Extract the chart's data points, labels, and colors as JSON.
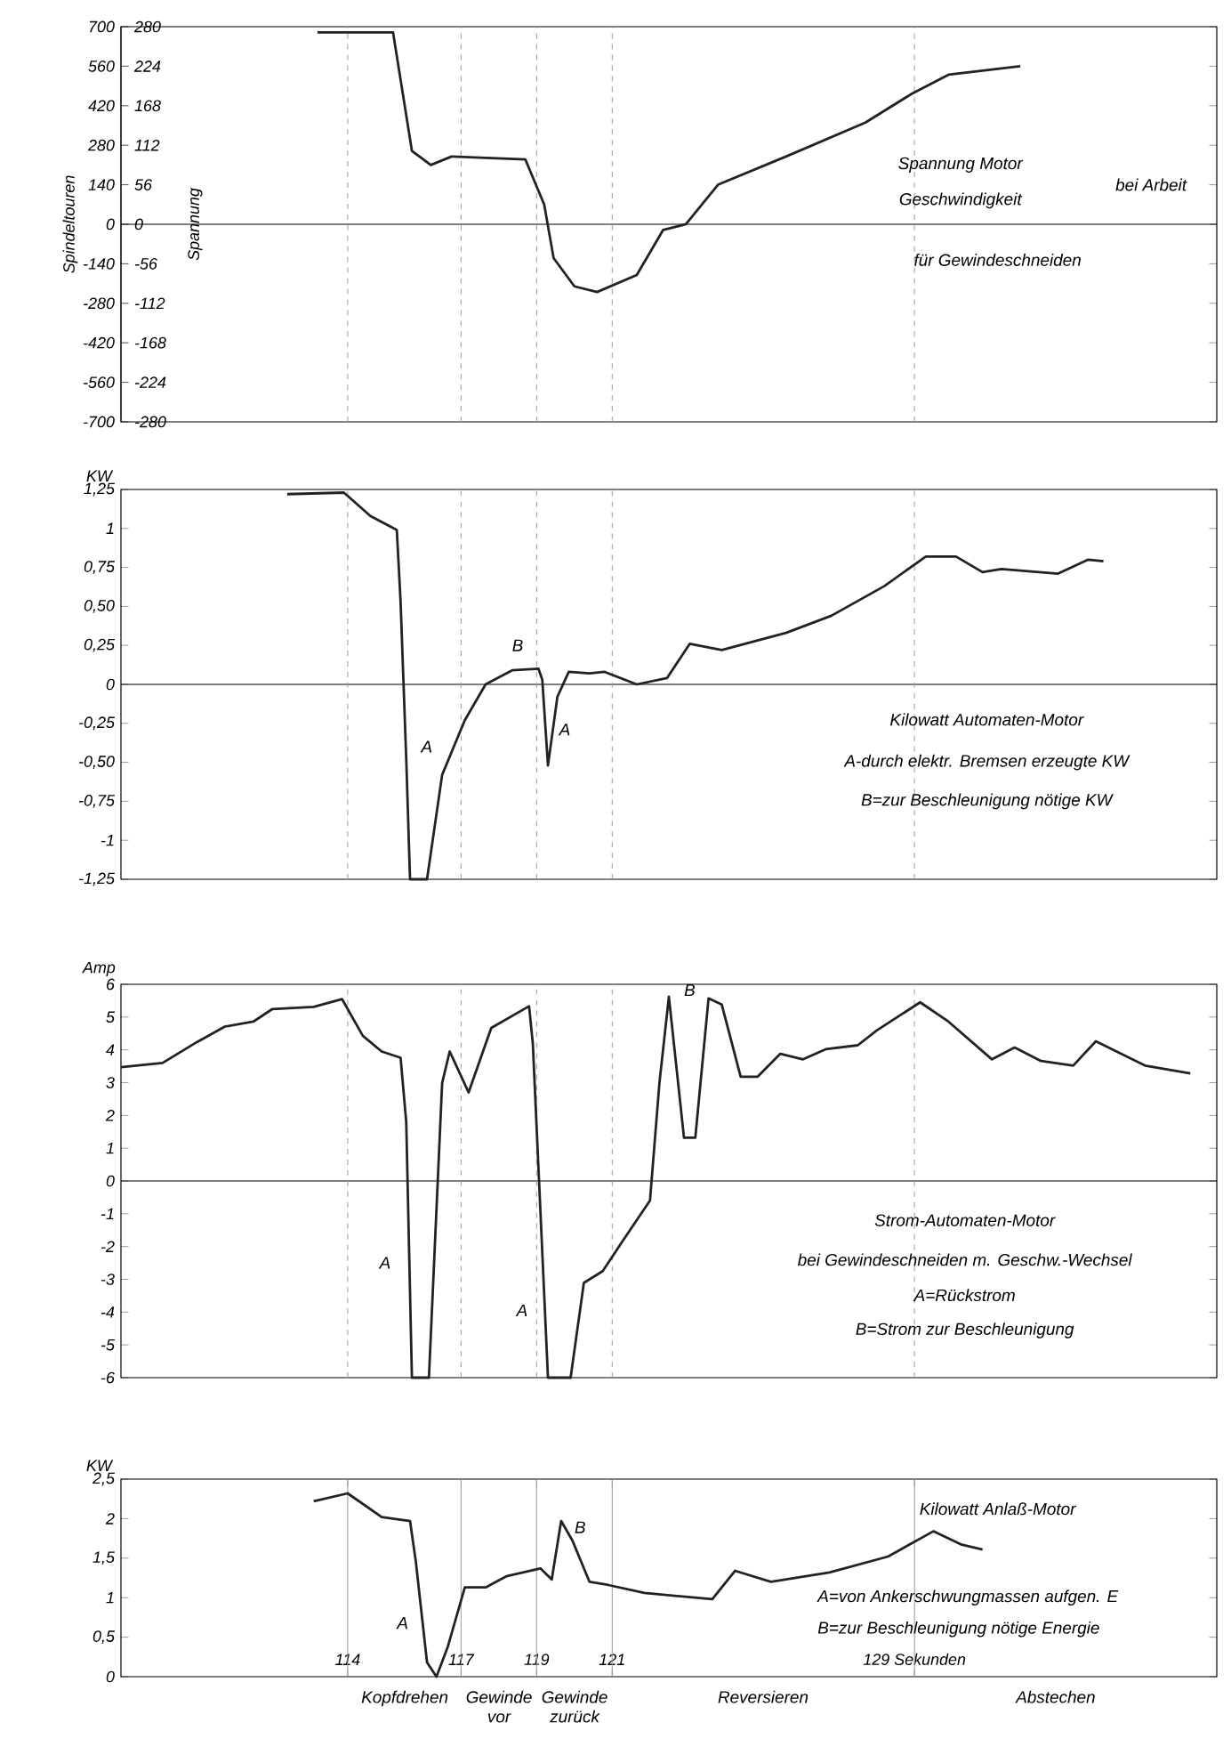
{
  "chart_data": [
    {
      "type": "line",
      "ylabel": "Spindeltouren",
      "y2label": "Spannung",
      "xlim": [
        108,
        137
      ],
      "ylim": [
        -700,
        700
      ],
      "yticks": [
        700,
        560,
        420,
        280,
        140,
        0,
        -140,
        -280,
        -420,
        -560,
        -700
      ],
      "y2lim": [
        -280,
        280
      ],
      "y2ticks": [
        280,
        224,
        168,
        112,
        56,
        0,
        -56,
        -112,
        -168,
        -224,
        -280
      ],
      "tick_labels": "y",
      "series": [
        {
          "color": "#222222",
          "x": [
            113.2,
            115.2,
            115.7,
            116.2,
            116.75,
            118.7,
            119.2,
            119.45,
            120.0,
            120.6,
            121.65,
            122.35,
            122.95,
            123.8,
            125.6,
            127.7,
            128.9,
            129.9,
            131.8
          ],
          "values": [
            680,
            680,
            260,
            210,
            240,
            230,
            70,
            -120,
            -220,
            -240,
            -180,
            -20,
            0,
            140,
            240,
            360,
            460,
            530,
            560
          ]
        }
      ],
      "ref_lines": [
        {
          "axis": "y",
          "value": 0,
          "color": "#000000"
        },
        {
          "axis": "x",
          "value": 114,
          "color": "#999999",
          "line_style": "dashed"
        },
        {
          "axis": "x",
          "value": 117,
          "color": "#999999",
          "line_style": "dashed"
        },
        {
          "axis": "x",
          "value": 119,
          "color": "#999999",
          "line_style": "dashed"
        },
        {
          "axis": "x",
          "value": 121,
          "color": "#999999",
          "line_style": "dashed"
        },
        {
          "axis": "x",
          "value": 129,
          "color": "#999999",
          "line_style": "dashed"
        }
      ],
      "annotations": [
        "Spannung Motor",
        "Geschwindigkeit",
        "bei Arbeit",
        "für Gewindeschneiden"
      ]
    },
    {
      "type": "line",
      "ylabel": "KW",
      "xlim": [
        108,
        137
      ],
      "ylim": [
        -1.25,
        1.25
      ],
      "yticks": [
        {
          "value": 1.25,
          "label": "1,25"
        },
        1,
        {
          "value": 0.75,
          "label": "0,75"
        },
        {
          "value": 0.5,
          "label": "0,50"
        },
        {
          "value": 0.25,
          "label": "0,25"
        },
        0,
        {
          "value": -0.25,
          "label": "-0,25"
        },
        {
          "value": -0.5,
          "label": "-0,50"
        },
        {
          "value": -0.75,
          "label": "-0,75"
        },
        -1,
        {
          "value": -1.25,
          "label": "-1,25"
        }
      ],
      "tick_labels": "y",
      "series": [
        {
          "color": "#222222",
          "x": [
            112.4,
            113.9,
            114.6,
            115.3,
            115.4,
            115.55,
            115.65,
            116.1,
            116.5,
            117.1,
            117.65,
            118.35,
            119.05,
            119.15,
            119.3,
            119.55,
            119.85,
            120.4,
            120.8,
            121.65,
            122.45,
            123.05,
            123.9,
            125.6,
            126.8,
            128.2,
            129.3,
            130.1,
            130.8,
            131.3,
            132.8,
            133.6,
            134.0
          ],
          "values": [
            1.22,
            1.23,
            1.08,
            0.99,
            0.53,
            -0.48,
            -1.25,
            -1.25,
            -0.58,
            -0.23,
            0,
            0.09,
            0.1,
            0.03,
            -0.52,
            -0.08,
            0.08,
            0.07,
            0.08,
            0,
            0.04,
            0.26,
            0.22,
            0.33,
            0.44,
            0.63,
            0.82,
            0.82,
            0.72,
            0.74,
            0.71,
            0.8,
            0.79
          ]
        }
      ],
      "ref_lines": [
        {
          "axis": "y",
          "value": 0,
          "color": "#000000"
        },
        {
          "axis": "x",
          "value": 114,
          "color": "#999999",
          "line_style": "dashed"
        },
        {
          "axis": "x",
          "value": 117,
          "color": "#999999",
          "line_style": "dashed"
        },
        {
          "axis": "x",
          "value": 119,
          "color": "#999999",
          "line_style": "dashed"
        },
        {
          "axis": "x",
          "value": 121,
          "color": "#999999",
          "line_style": "dashed"
        },
        {
          "axis": "x",
          "value": 129,
          "color": "#999999",
          "line_style": "dashed"
        }
      ],
      "annotations": [
        "Kilowatt Automaten-Motor",
        "A-durch elektr. Bremsen erzeugte KW",
        "B=zur Beschleunigung nötige KW",
        "A",
        "B",
        "A"
      ]
    },
    {
      "type": "line",
      "ylabel": "Amp",
      "xlim": [
        108,
        137
      ],
      "ylim": [
        -6,
        6
      ],
      "yticks": [
        6,
        5,
        4,
        3,
        2,
        1,
        0,
        -1,
        -2,
        -3,
        -4,
        -5,
        -6
      ],
      "tick_labels": "y",
      "series": [
        {
          "color": "#222222",
          "x": [
            108.0,
            109.1,
            110.0,
            110.75,
            111.5,
            112.0,
            113.1,
            113.85,
            114.4,
            114.9,
            115.4,
            115.55,
            115.7,
            116.15,
            116.5,
            116.7,
            117.2,
            117.8,
            118.8,
            118.9,
            119.3,
            119.9,
            120.25,
            120.75,
            121.3,
            122.0,
            122.25,
            122.5,
            122.9,
            123.2,
            123.55,
            123.9,
            124.4,
            124.85,
            125.45,
            126.05,
            126.65,
            127.5,
            128.0,
            129.15,
            129.9,
            131.05,
            131.65,
            132.35,
            133.2,
            133.8,
            135.1,
            136.3
          ],
          "values": [
            3.47,
            3.6,
            4.23,
            4.71,
            4.86,
            5.24,
            5.31,
            5.55,
            4.43,
            3.95,
            3.76,
            1.79,
            -6,
            -6,
            2.99,
            3.95,
            2.7,
            4.67,
            5.33,
            4.19,
            -6,
            -6,
            -3.11,
            -2.75,
            -1.79,
            -0.6,
            2.99,
            5.62,
            1.32,
            1.32,
            5.57,
            5.38,
            3.18,
            3.18,
            3.88,
            3.71,
            4.02,
            4.14,
            4.59,
            5.45,
            4.86,
            3.71,
            4.07,
            3.66,
            3.52,
            4.26,
            3.52,
            3.28
          ]
        }
      ],
      "ref_lines": [
        {
          "axis": "y",
          "value": 0,
          "color": "#000000"
        },
        {
          "axis": "x",
          "value": 114,
          "color": "#999999",
          "line_style": "dashed"
        },
        {
          "axis": "x",
          "value": 117,
          "color": "#999999",
          "line_style": "dashed"
        },
        {
          "axis": "x",
          "value": 119,
          "color": "#999999",
          "line_style": "dashed"
        },
        {
          "axis": "x",
          "value": 121,
          "color": "#999999",
          "line_style": "dashed"
        },
        {
          "axis": "x",
          "value": 129,
          "color": "#999999",
          "line_style": "dashed"
        }
      ],
      "annotations": [
        "Strom-Automaten-Motor",
        "bei Gewindeschneiden m. Geschw.-Wechsel",
        "A=Rückstrom",
        "B=Strom zur Beschleunigung",
        "A",
        "A",
        "B"
      ]
    },
    {
      "type": "line",
      "ylabel": "KW",
      "xlim": [
        108,
        137
      ],
      "ylim": [
        0,
        2.5
      ],
      "yticks": [
        {
          "value": 2.5,
          "label": "2,5"
        },
        2,
        {
          "value": 1.5,
          "label": "1,5"
        },
        1,
        {
          "value": 0.5,
          "label": "0,5"
        },
        0
      ],
      "xticks": [
        114,
        117,
        119,
        121,
        {
          "value": 129,
          "label": "129 Sekunden"
        }
      ],
      "series": [
        {
          "color": "#222222",
          "x": [
            113.1,
            114.0,
            114.9,
            115.65,
            115.8,
            116.1,
            116.35,
            116.65,
            117.1,
            117.65,
            118.2,
            119.1,
            119.4,
            119.65,
            119.95,
            120.4,
            120.9,
            121.85,
            123.65,
            124.25,
            125.2,
            126.75,
            128.3,
            129.5,
            130.25,
            130.8
          ],
          "values": [
            2.22,
            2.32,
            2.02,
            1.97,
            1.47,
            0.18,
            0,
            0.38,
            1.13,
            1.13,
            1.27,
            1.37,
            1.23,
            1.97,
            1.72,
            1.2,
            1.16,
            1.06,
            0.98,
            1.34,
            1.2,
            1.32,
            1.52,
            1.84,
            1.67,
            1.61
          ]
        }
      ],
      "ref_lines": [
        {
          "axis": "x",
          "value": 114,
          "color": "#999999",
          "line_style": "solid"
        },
        {
          "axis": "x",
          "value": 117,
          "color": "#999999",
          "line_style": "solid"
        },
        {
          "axis": "x",
          "value": 119,
          "color": "#999999",
          "line_style": "solid"
        },
        {
          "axis": "x",
          "value": 121,
          "color": "#999999",
          "line_style": "solid"
        },
        {
          "axis": "x",
          "value": 129,
          "color": "#999999",
          "line_style": "solid"
        }
      ],
      "annotations": [
        "Kilowatt Anlaß-Motor",
        "A=von Ankerschwungmassen aufgen. E",
        "B=zur Beschleunigung nötige Energie",
        "A",
        "B",
        "Kopfdrehen",
        "Gewinde vor",
        "Gewinde zurück",
        "Reversieren",
        "Abstechen"
      ]
    }
  ]
}
